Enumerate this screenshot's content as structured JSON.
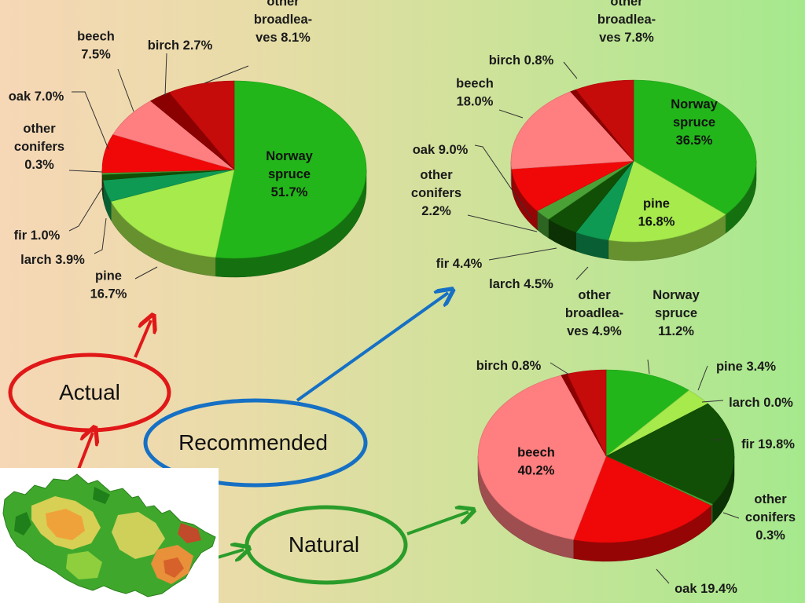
{
  "colors": {
    "norway_spruce": "#22b61a",
    "pine": "#a6ea4c",
    "larch": "#0e9a52",
    "fir": "#114f06",
    "other_conifers": "#4aa236",
    "oak": "#f00808",
    "beech": "#ff7e80",
    "birch": "#8b0000",
    "other_broadleaves": "#c60b0b",
    "arrow_actual": "#e01818",
    "arrow_recommended": "#1670c4",
    "arrow_natural": "#2a9c2a"
  },
  "ovals": {
    "actual": "Actual",
    "recommended": "Recommended",
    "natural": "Natural"
  },
  "map": {
    "icon": "czech-republic-relief-map"
  },
  "chart_data": [
    {
      "type": "pie",
      "title": "",
      "categories": [
        "Norway spruce",
        "pine",
        "larch",
        "fir",
        "other conifers",
        "oak",
        "beech",
        "birch",
        "other broadleaves"
      ],
      "values": [
        51.7,
        16.7,
        3.9,
        1.0,
        0.3,
        7.0,
        7.5,
        2.7,
        8.1
      ],
      "legend": "none",
      "labels": {
        "norway_spruce": [
          "Norway",
          "spruce",
          "51.7%"
        ],
        "pine": [
          "pine",
          "16.7%"
        ],
        "larch": [
          "larch 3.9%"
        ],
        "fir": [
          "fir 1.0%"
        ],
        "other_conifers": [
          "other",
          "conifers",
          "0.3%"
        ],
        "oak": [
          "oak 7.0%"
        ],
        "beech": [
          "beech",
          "7.5%"
        ],
        "birch": [
          "birch 2.7%"
        ],
        "other_broadleaves": [
          "other",
          "broadlea-",
          "ves 8.1%"
        ]
      }
    },
    {
      "type": "pie",
      "title": "",
      "categories": [
        "Norway spruce",
        "pine",
        "larch",
        "fir",
        "other conifers",
        "oak",
        "beech",
        "birch",
        "other broadleaves"
      ],
      "values": [
        36.5,
        16.8,
        4.5,
        4.4,
        2.2,
        9.0,
        18.0,
        0.8,
        7.8
      ],
      "legend": "none",
      "labels": {
        "norway_spruce": [
          "Norway",
          "spruce",
          "36.5%"
        ],
        "pine": [
          "pine",
          "16.8%"
        ],
        "larch": [
          "larch 4.5%"
        ],
        "fir": [
          "fir 4.4%"
        ],
        "other_conifers": [
          "other",
          "conifers",
          "2.2%"
        ],
        "oak": [
          "oak 9.0%"
        ],
        "beech": [
          "beech",
          "18.0%"
        ],
        "birch": [
          "birch 0.8%"
        ],
        "other_broadleaves": [
          "other",
          "broadlea-",
          "ves 7.8%"
        ]
      }
    },
    {
      "type": "pie",
      "title": "",
      "categories": [
        "Norway spruce",
        "pine",
        "larch",
        "fir",
        "other conifers",
        "oak",
        "beech",
        "birch",
        "other broadleaves"
      ],
      "values": [
        11.2,
        3.4,
        0.0,
        19.8,
        0.3,
        19.4,
        40.2,
        0.8,
        4.9
      ],
      "legend": "none",
      "labels": {
        "norway_spruce": [
          "Norway",
          "spruce",
          "11.2%"
        ],
        "pine": [
          "pine 3.4%"
        ],
        "larch": [
          "larch 0.0%"
        ],
        "fir": [
          "fir 19.8%"
        ],
        "other_conifers": [
          "other",
          "conifers",
          "0.3%"
        ],
        "oak": [
          "oak 19.4%"
        ],
        "beech": [
          "beech",
          "40.2%"
        ],
        "birch": [
          "birch 0.8%"
        ],
        "other_broadleaves": [
          "other",
          "broadlea-",
          "ves 4.9%"
        ]
      }
    }
  ]
}
